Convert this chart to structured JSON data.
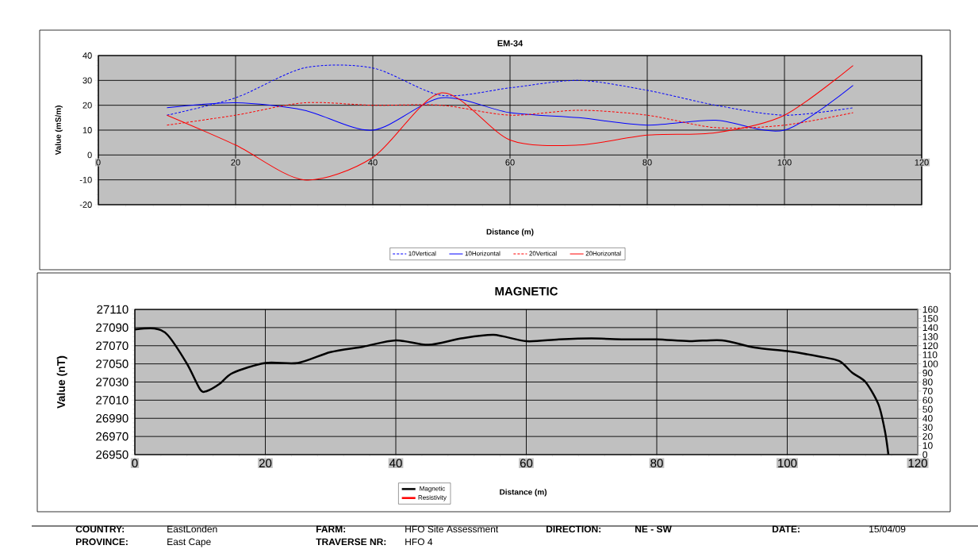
{
  "chart_data": [
    {
      "type": "line",
      "title": "EM-34",
      "xlabel": "Distance (m)",
      "ylabel": "Value (mS/m)",
      "x": [
        10,
        20,
        30,
        40,
        50,
        60,
        70,
        80,
        90,
        100,
        110
      ],
      "xlim": [
        0,
        120
      ],
      "xticks": [
        0,
        20,
        40,
        60,
        80,
        100,
        120
      ],
      "ylim": [
        -20,
        40
      ],
      "yticks": [
        -20,
        -10,
        0,
        10,
        20,
        30,
        40
      ],
      "grid": true,
      "legend": "bottom",
      "marker": "none",
      "series": [
        {
          "name": "10Vertical",
          "color": "#0000ff",
          "line_style": "dashed",
          "values": [
            16,
            23,
            35,
            35,
            24,
            27,
            30,
            26,
            20,
            16,
            19
          ]
        },
        {
          "name": "10Horizontal",
          "color": "#0000ff",
          "line_style": "solid",
          "values": [
            19,
            21,
            18,
            10,
            23,
            17,
            15,
            12,
            14,
            10,
            28
          ]
        },
        {
          "name": "20Vertical",
          "color": "#ff0000",
          "line_style": "dashed",
          "values": [
            12,
            16,
            21,
            20,
            20,
            16,
            18,
            16,
            11,
            12,
            17
          ]
        },
        {
          "name": "20Horizontal",
          "color": "#ff0000",
          "line_style": "solid",
          "values": [
            16,
            4,
            -10,
            -1,
            25,
            6,
            4,
            8,
            9,
            16,
            36
          ]
        }
      ]
    },
    {
      "type": "line",
      "title": "MAGNETIC",
      "xlabel": "Distance (m)",
      "ylabel": "Value (nT)",
      "xlim": [
        0,
        120
      ],
      "xticks": [
        0,
        20,
        40,
        60,
        80,
        100,
        120
      ],
      "ylim": [
        26950,
        27110
      ],
      "yticks": [
        26950,
        26970,
        26990,
        27010,
        27030,
        27050,
        27070,
        27090,
        27110
      ],
      "y2lim": [
        0,
        160
      ],
      "y2ticks": [
        0,
        10,
        20,
        30,
        40,
        50,
        60,
        70,
        80,
        90,
        100,
        110,
        120,
        130,
        140,
        150,
        160
      ],
      "grid": true,
      "legend": "bottom",
      "marker": "none",
      "series": [
        {
          "name": "Magnetic",
          "color": "#000000",
          "line_style": "solid",
          "x": [
            0,
            3,
            5,
            8,
            10,
            11,
            13,
            15,
            20,
            25,
            30,
            35,
            40,
            45,
            50,
            55,
            60,
            65,
            70,
            75,
            80,
            85,
            90,
            95,
            100,
            105,
            108,
            110,
            112,
            114,
            115,
            115.5
          ],
          "values": [
            27088,
            27089,
            27082,
            27050,
            27022,
            27020,
            27028,
            27040,
            27051,
            27051,
            27063,
            27069,
            27076,
            27071,
            27078,
            27082,
            27075,
            27077,
            27078,
            27077,
            27077,
            27075,
            27076,
            27068,
            27064,
            27058,
            27053,
            27040,
            27030,
            27005,
            26975,
            26950
          ]
        },
        {
          "name": "Resistivity",
          "color": "#ff0000",
          "line_style": "solid"
        }
      ]
    },
    {
      "type": "other",
      "annotations": [
        "COUNTRY:",
        "EastLonden",
        "FARM:",
        "HFO Site Assessment",
        "DIRECTION:",
        "NE - SW",
        "DATE:",
        "15/04/09",
        "PROVINCE:",
        "East Cape",
        "TRAVERSE NR:",
        "HFO 4"
      ]
    }
  ]
}
